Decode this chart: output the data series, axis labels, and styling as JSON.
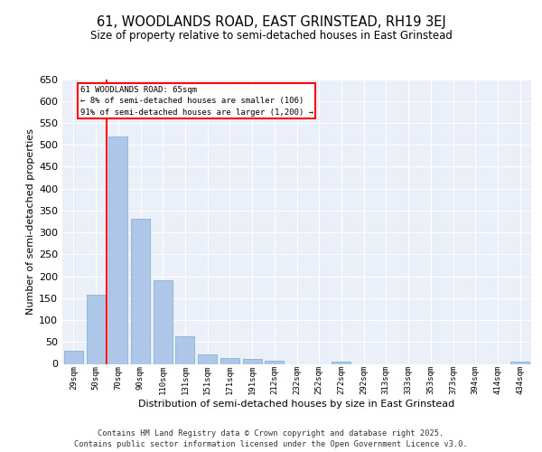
{
  "title_line1": "61, WOODLANDS ROAD, EAST GRINSTEAD, RH19 3EJ",
  "title_line2": "Size of property relative to semi-detached houses in East Grinstead",
  "xlabel": "Distribution of semi-detached houses by size in East Grinstead",
  "ylabel": "Number of semi-detached properties",
  "categories": [
    "29sqm",
    "50sqm",
    "70sqm",
    "90sqm",
    "110sqm",
    "131sqm",
    "151sqm",
    "171sqm",
    "191sqm",
    "212sqm",
    "232sqm",
    "252sqm",
    "272sqm",
    "292sqm",
    "313sqm",
    "333sqm",
    "353sqm",
    "373sqm",
    "394sqm",
    "414sqm",
    "434sqm"
  ],
  "values": [
    30,
    158,
    520,
    332,
    190,
    62,
    22,
    14,
    11,
    8,
    0,
    0,
    5,
    0,
    0,
    0,
    0,
    0,
    0,
    0,
    6
  ],
  "bar_color": "#aec6e8",
  "bar_edge_color": "#7aaad0",
  "red_line_x": 1.5,
  "annotation_title": "61 WOODLANDS ROAD: 65sqm",
  "annotation_line1": "← 8% of semi-detached houses are smaller (106)",
  "annotation_line2": "91% of semi-detached houses are larger (1,200) →",
  "ylim": [
    0,
    650
  ],
  "yticks": [
    0,
    50,
    100,
    150,
    200,
    250,
    300,
    350,
    400,
    450,
    500,
    550,
    600,
    650
  ],
  "background_color": "#eaeff8",
  "grid_color": "#ffffff",
  "footer_line1": "Contains HM Land Registry data © Crown copyright and database right 2025.",
  "footer_line2": "Contains public sector information licensed under the Open Government Licence v3.0."
}
